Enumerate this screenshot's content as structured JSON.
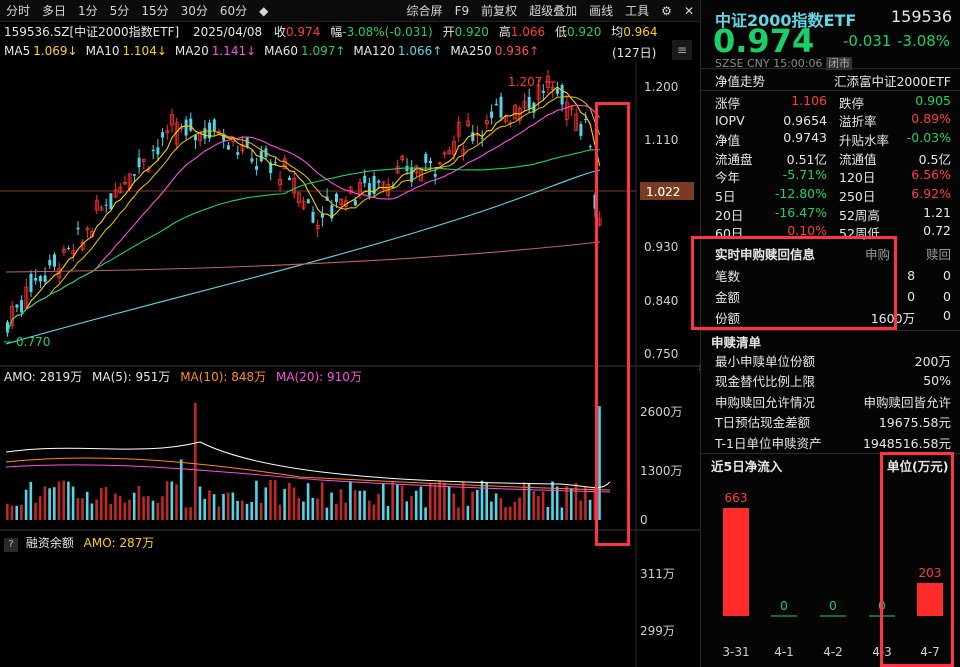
{
  "toolbar": {
    "periods": [
      "分时",
      "多日",
      "1分",
      "5分",
      "15分",
      "30分",
      "60分"
    ],
    "actions": [
      "综合屏",
      "F9",
      "前复权",
      "超级叠加",
      "画线",
      "工具"
    ]
  },
  "quote_line": {
    "code": "159536.SZ[中证2000指数ETF]",
    "date": "2025/04/08",
    "close_label": "收",
    "close": "0.974",
    "change_label": "幅",
    "change": "-3.08%(-0.031)",
    "open_label": "开",
    "open": "0.920",
    "high_label": "高",
    "high": "1.066",
    "low_label": "低",
    "low": "0.920",
    "avg_label": "均",
    "avg": "0.964"
  },
  "ma_line": [
    {
      "label": "MA5",
      "value": "1.069↓",
      "color": "#ffd300"
    },
    {
      "label": "MA10",
      "value": "1.104↓",
      "color": "#ffd300"
    },
    {
      "label": "MA20",
      "value": "1.141↓",
      "color": "#ff4de1"
    },
    {
      "label": "MA60",
      "value": "1.097↑",
      "color": "#19d169"
    },
    {
      "label": "MA120",
      "value": "1.066↑",
      "color": "#5fd7e6"
    },
    {
      "label": "MA250",
      "value": "0.936↑",
      "color": "#ff4d4d"
    }
  ],
  "bars_count": "(127日)",
  "price_axis": [
    "1.200",
    "1.110",
    "1.022",
    "0.930",
    "0.840",
    "0.750"
  ],
  "price_high_label": "1.207",
  "price_low_label": "0.770",
  "amo_line": {
    "amo": "AMO: 2819万",
    "ma5": "MA(5): 951万",
    "ma10": "MA(10): 848万",
    "ma20": "MA(20): 910万"
  },
  "vol_axis": [
    "2600万",
    "1300万",
    "0"
  ],
  "margin_line": {
    "q": "?",
    "label": "融资余额",
    "amo": "AMO: 287万"
  },
  "margin_axis": [
    "311万",
    "299万"
  ],
  "side": {
    "title": "中证2000指数ETF",
    "code": "159536",
    "price": "0.974",
    "change": "-0.031",
    "change_pct": "-3.08%",
    "market": "SZSE",
    "currency": "CNY",
    "time": "15:00:06",
    "status": "闭市",
    "nav_trend": "净值走势",
    "issuer": "汇添富中证2000ETF",
    "stats": [
      [
        "涨停",
        "1.106",
        "跌停",
        "0.905"
      ],
      [
        "IOPV",
        "0.9654",
        "溢折率",
        "0.89%"
      ],
      [
        "净值",
        "0.9743",
        "升贴水率",
        "-0.03%"
      ],
      [
        "流通盘",
        "0.51亿",
        "流通值",
        "0.5亿"
      ],
      [
        "今年",
        "-5.71%",
        "120日",
        "6.56%"
      ],
      [
        "5日",
        "-12.80%",
        "250日",
        "6.92%"
      ],
      [
        "20日",
        "-16.47%",
        "52周高",
        "1.21"
      ],
      [
        "60日",
        "0.10%",
        "52周低",
        "0.72"
      ]
    ],
    "realtime": {
      "title": "实时申购赎回信息",
      "col1": "申购",
      "col2": "赎回",
      "rows": [
        [
          "笔数",
          "8",
          "0"
        ],
        [
          "金额",
          "0",
          "0"
        ],
        [
          "份额",
          "1600万",
          "0"
        ]
      ]
    },
    "list_title": "申赎清单",
    "list": [
      [
        "最小申赎单位份额",
        "200万"
      ],
      [
        "现金替代比例上限",
        "50%"
      ],
      [
        "申购赎回允许情况",
        "申购赎回皆允许"
      ],
      [
        "T日预估现金差额",
        "19675.58元"
      ],
      [
        "T-1日单位申赎资产",
        "1948516.58元"
      ]
    ],
    "flow_title": "近5日净流入",
    "flow_unit": "单位(万元)",
    "flow": [
      {
        "date": "3-31",
        "value": 663
      },
      {
        "date": "4-1",
        "value": 0
      },
      {
        "date": "4-2",
        "value": 0
      },
      {
        "date": "4-3",
        "value": 0
      },
      {
        "date": "4-7",
        "value": 203
      }
    ],
    "flow_labels": [
      "663",
      "0",
      "0",
      "0",
      "203"
    ]
  }
}
